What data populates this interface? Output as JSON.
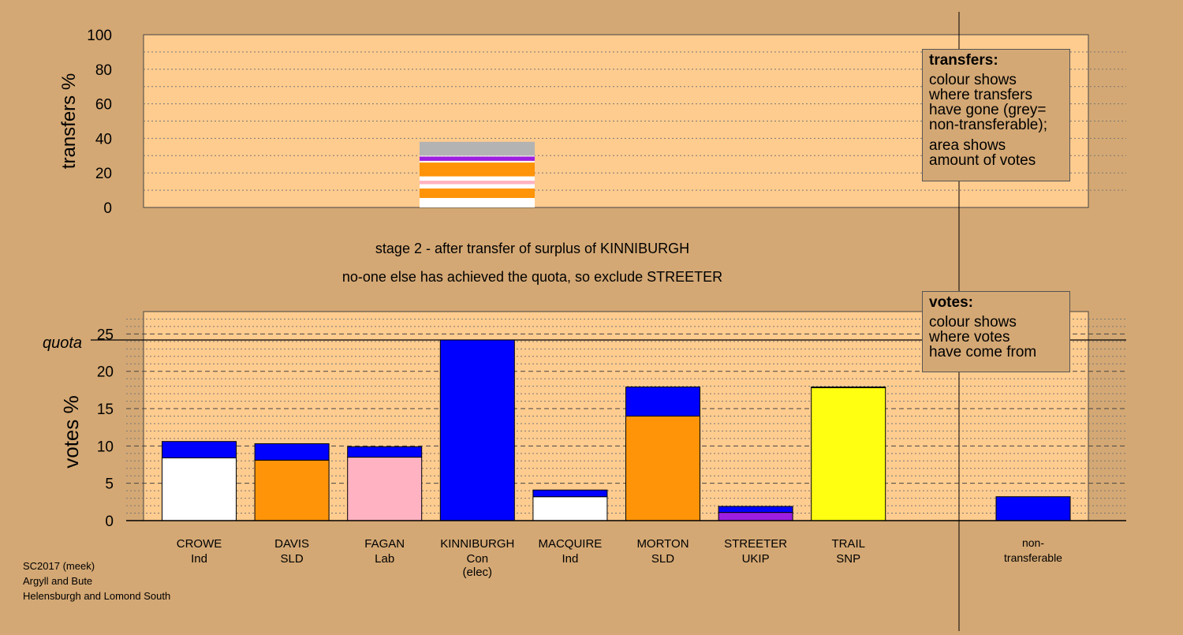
{
  "colors": {
    "background": "#d4a874",
    "plot_background": "#ffcc8f",
    "Con": "#0000ff",
    "Ind": "#ffffff",
    "SLD": "#ff9408",
    "Lab": "#ffb2c1",
    "UKIP": "#9c1ee0",
    "SNP": "#ffff12",
    "non_transferable": "#b3b3b3"
  },
  "captions": {
    "line1": "stage 2 - after transfer of surplus of KINNIBURGH",
    "line2": "no-one else has achieved the quota, so exclude STREETER"
  },
  "footer": {
    "line1": "SC2017 (meek)",
    "line2": "Argyll and Bute",
    "line3": "Helensburgh and Lomond South"
  },
  "legend_transfers": {
    "title": "transfers:",
    "lines1": [
      "colour shows",
      "where transfers",
      "have gone (grey=",
      "non-transferable);"
    ],
    "lines2": [
      "area shows",
      "amount of votes"
    ]
  },
  "legend_votes": {
    "title": "votes:",
    "lines": [
      "colour shows",
      "where votes",
      "have come from"
    ]
  },
  "chart_data": [
    {
      "type": "bar",
      "ylabel": "transfers %",
      "ylim": [
        0,
        100
      ],
      "yticks": [
        0,
        20,
        40,
        60,
        80,
        100
      ],
      "grid": true,
      "transfer_from": "KINNIBURGH",
      "segments": [
        {
          "party": "Ind",
          "candidate": "CROWE",
          "value": 5.5
        },
        {
          "party": "SLD",
          "candidate": "DAVIS",
          "value": 5.5
        },
        {
          "party": "Ind",
          "candidate": "MACQUIRE",
          "value": 2.5
        },
        {
          "party": "Lab",
          "candidate": "FAGAN",
          "value": 2.0
        },
        {
          "party": "Ind",
          "candidate": "",
          "value": 2.5
        },
        {
          "party": "SLD",
          "candidate": "MORTON",
          "value": 8.0
        },
        {
          "party": "Ind",
          "candidate": "",
          "value": 1.0
        },
        {
          "party": "UKIP",
          "candidate": "STREETER",
          "value": 2.5
        },
        {
          "party": "Ind",
          "candidate": "",
          "value": 0.5
        },
        {
          "party": "non_transferable",
          "candidate": "",
          "value": 8.0
        }
      ],
      "total": 38
    },
    {
      "type": "bar",
      "ylabel": "votes %",
      "ylim": [
        0,
        28
      ],
      "yticks": [
        0,
        5,
        10,
        15,
        20,
        25
      ],
      "grid": true,
      "quota": 24.2,
      "quota_label": "quota",
      "categories": [
        {
          "name": "CROWE",
          "party": "Ind",
          "extra": ""
        },
        {
          "name": "DAVIS",
          "party": "SLD",
          "extra": ""
        },
        {
          "name": "FAGAN",
          "party": "Lab",
          "extra": ""
        },
        {
          "name": "KINNIBURGH",
          "party": "Con",
          "extra": "(elec)"
        },
        {
          "name": "MACQUIRE",
          "party": "Ind",
          "extra": ""
        },
        {
          "name": "MORTON",
          "party": "SLD",
          "extra": ""
        },
        {
          "name": "STREETER",
          "party": "UKIP",
          "extra": ""
        },
        {
          "name": "TRAIL",
          "party": "SNP",
          "extra": ""
        }
      ],
      "first_preference": [
        8.4,
        8.1,
        8.5,
        24.2,
        3.2,
        14.0,
        1.1,
        17.8
      ],
      "transferred_from_Con": [
        2.2,
        2.2,
        1.4,
        0,
        0.9,
        3.9,
        0.8,
        0.1
      ],
      "non_transferable": {
        "line1": "non-",
        "line2": "transferable",
        "value": 3.2
      }
    }
  ]
}
